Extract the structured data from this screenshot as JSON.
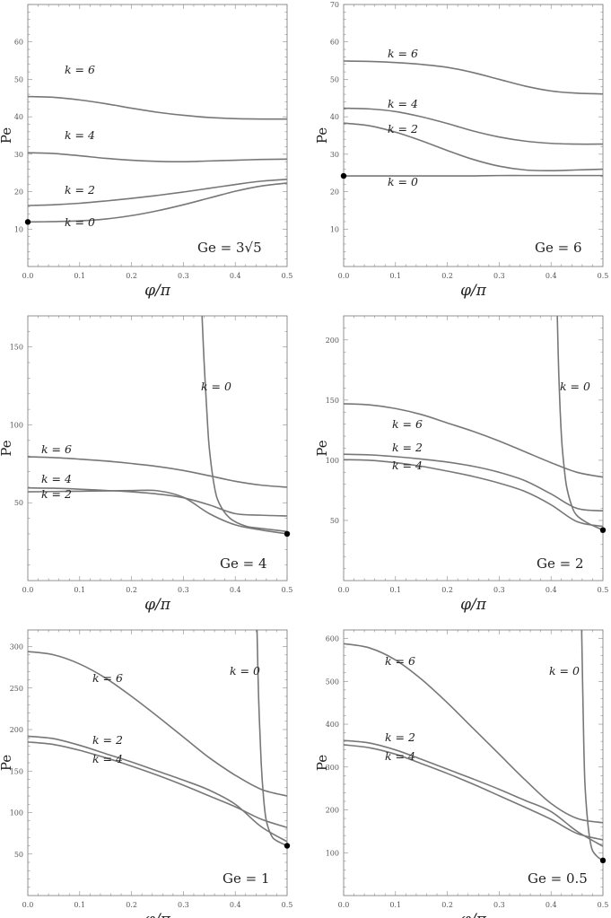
{
  "chart_data": [
    {
      "type": "line",
      "panel_label": "Ge = 3√5",
      "xlabel": "φ/π",
      "ylabel": "Pe",
      "xlim": [
        0,
        0.5
      ],
      "ylim": [
        0,
        70
      ],
      "xticks": [
        "0.0",
        "0.1",
        "0.2",
        "0.3",
        "0.4",
        "0.5"
      ],
      "yticks": [
        "10",
        "20",
        "30",
        "40",
        "50",
        "60"
      ],
      "x": [
        0,
        0.05,
        0.1,
        0.15,
        0.2,
        0.25,
        0.3,
        0.35,
        0.4,
        0.45,
        0.5
      ],
      "series": [
        {
          "name": "k = 6",
          "values": [
            45.4,
            45.2,
            44.5,
            43.5,
            42.3,
            41.2,
            40.4,
            39.8,
            39.5,
            39.4,
            39.4
          ]
        },
        {
          "name": "k = 4",
          "values": [
            30.4,
            30.2,
            29.6,
            28.9,
            28.4,
            28.1,
            28.0,
            28.2,
            28.4,
            28.6,
            28.7
          ]
        },
        {
          "name": "k = 2",
          "values": [
            16.3,
            16.5,
            16.9,
            17.5,
            18.2,
            19.0,
            19.9,
            20.9,
            21.9,
            22.8,
            23.3
          ]
        },
        {
          "name": "k = 0",
          "values": [
            11.9,
            12.0,
            12.2,
            12.7,
            13.6,
            14.9,
            16.5,
            18.3,
            20.1,
            21.5,
            22.3
          ]
        }
      ],
      "marker": {
        "x": 0,
        "y": 11.9
      }
    },
    {
      "type": "line",
      "panel_label": "Ge = 6",
      "xlabel": "φ/π",
      "ylabel": "Pe",
      "xlim": [
        0,
        0.5
      ],
      "ylim": [
        0,
        70
      ],
      "xticks": [
        "0.0",
        "0.1",
        "0.2",
        "0.3",
        "0.4",
        "0.5"
      ],
      "yticks": [
        "10",
        "20",
        "30",
        "40",
        "50",
        "60",
        "70"
      ],
      "x": [
        0,
        0.05,
        0.1,
        0.15,
        0.2,
        0.25,
        0.3,
        0.35,
        0.4,
        0.45,
        0.5
      ],
      "series": [
        {
          "name": "k = 6",
          "values": [
            54.9,
            54.8,
            54.5,
            54.0,
            53.2,
            51.8,
            50.0,
            48.2,
            46.9,
            46.3,
            46.1
          ]
        },
        {
          "name": "k = 4",
          "values": [
            42.3,
            42.1,
            41.4,
            40.0,
            38.2,
            36.2,
            34.6,
            33.5,
            32.9,
            32.7,
            32.7
          ]
        },
        {
          "name": "k = 2",
          "values": [
            38.3,
            37.6,
            35.9,
            33.6,
            31.0,
            28.6,
            26.8,
            25.8,
            25.6,
            25.8,
            26.0
          ]
        },
        {
          "name": "k = 0",
          "values": [
            24.2,
            24.2,
            24.2,
            24.2,
            24.2,
            24.2,
            24.3,
            24.3,
            24.3,
            24.3,
            24.3
          ]
        }
      ],
      "marker": {
        "x": 0,
        "y": 24.2
      }
    },
    {
      "type": "line",
      "panel_label": "Ge = 4",
      "xlabel": "φ/π",
      "ylabel": "Pe",
      "xlim": [
        0,
        0.5
      ],
      "ylim": [
        0,
        170
      ],
      "xticks": [
        "0.0",
        "0.1",
        "0.2",
        "0.3",
        "0.4",
        "0.5"
      ],
      "yticks": [
        "50",
        "100",
        "150"
      ],
      "x": [
        0,
        0.05,
        0.1,
        0.15,
        0.2,
        0.25,
        0.3,
        0.35,
        0.4,
        0.45,
        0.5
      ],
      "series": [
        {
          "name": "k = 6",
          "values": [
            79.5,
            79.0,
            78.0,
            76.8,
            75.2,
            73.3,
            70.7,
            67.3,
            63.8,
            61.3,
            60.0
          ]
        },
        {
          "name": "k = 4",
          "values": [
            59.5,
            59.3,
            58.7,
            57.9,
            57.0,
            55.6,
            53.2,
            48.6,
            43.0,
            42.0,
            41.5
          ]
        },
        {
          "name": "k = 2",
          "values": [
            57.0,
            57.2,
            57.4,
            57.6,
            57.8,
            57.7,
            53.5,
            43.0,
            35.8,
            32.5,
            30.0
          ]
        }
      ],
      "asymptote_series": {
        "name": "k = 0",
        "x": [
          0.336,
          0.34,
          0.345,
          0.35,
          0.36,
          0.37,
          0.39,
          0.42,
          0.45,
          0.5
        ],
        "values": [
          170,
          140,
          110,
          85,
          60,
          49,
          40,
          35,
          33.5,
          31.5
        ]
      },
      "marker": {
        "x": 0.5,
        "y": 30
      }
    },
    {
      "type": "line",
      "panel_label": "Ge = 2",
      "xlabel": "φ/π",
      "ylabel": "Pe",
      "xlim": [
        0,
        0.5
      ],
      "ylim": [
        0,
        220
      ],
      "xticks": [
        "0.0",
        "0.1",
        "0.2",
        "0.3",
        "0.4",
        "0.5"
      ],
      "yticks": [
        "50",
        "100",
        "150",
        "200"
      ],
      "x": [
        0,
        0.05,
        0.1,
        0.15,
        0.2,
        0.25,
        0.3,
        0.35,
        0.4,
        0.45,
        0.5
      ],
      "series": [
        {
          "name": "k = 6",
          "values": [
            147,
            146,
            143,
            138,
            131,
            124,
            116,
            107,
            98,
            90,
            86
          ]
        },
        {
          "name": "k = 2",
          "values": [
            105,
            104.5,
            103,
            101,
            98.5,
            95,
            90,
            83,
            72,
            60,
            58
          ]
        },
        {
          "name": "k = 4",
          "values": [
            100.5,
            100,
            98,
            95,
            91,
            86.5,
            81,
            74,
            63,
            49,
            45
          ]
        }
      ],
      "asymptote_series": {
        "name": "k = 0",
        "x": [
          0.412,
          0.415,
          0.42,
          0.425,
          0.43,
          0.44,
          0.45,
          0.47,
          0.5
        ],
        "values": [
          220,
          170,
          120,
          95,
          78,
          62,
          54,
          48,
          42
        ]
      },
      "marker": {
        "x": 0.5,
        "y": 42
      }
    },
    {
      "type": "line",
      "panel_label": "Ge = 1",
      "xlabel": "φ/π",
      "ylabel": "Pe",
      "xlim": [
        0,
        0.5
      ],
      "ylim": [
        0,
        320
      ],
      "xticks": [
        "0.0",
        "0.1",
        "0.2",
        "0.3",
        "0.4",
        "0.5"
      ],
      "yticks": [
        "50",
        "100",
        "150",
        "200",
        "250",
        "300"
      ],
      "x": [
        0,
        0.05,
        0.1,
        0.15,
        0.2,
        0.25,
        0.3,
        0.35,
        0.4,
        0.45,
        0.5
      ],
      "series": [
        {
          "name": "k = 6",
          "values": [
            294,
            290,
            279,
            262,
            240,
            216,
            191,
            166,
            145,
            128,
            120
          ]
        },
        {
          "name": "k = 2",
          "values": [
            192,
            189,
            181,
            171,
            161,
            150,
            139,
            127,
            110,
            83,
            65
          ]
        },
        {
          "name": "k = 4",
          "values": [
            185,
            182,
            175,
            166,
            156,
            145,
            133,
            120,
            107,
            92,
            82
          ]
        }
      ],
      "asymptote_series": {
        "name": "k = 0",
        "x": [
          0.442,
          0.445,
          0.45,
          0.455,
          0.46,
          0.47,
          0.48,
          0.5
        ],
        "values": [
          320,
          240,
          160,
          115,
          90,
          72,
          66,
          60
        ]
      },
      "marker": {
        "x": 0.5,
        "y": 60
      }
    },
    {
      "type": "line",
      "panel_label": "Ge = 0.5",
      "xlabel": "φ/π",
      "ylabel": "Pe",
      "xlim": [
        0,
        0.5
      ],
      "ylim": [
        0,
        620
      ],
      "xticks": [
        "0.0",
        "0.1",
        "0.2",
        "0.3",
        "0.4",
        "0.5"
      ],
      "yticks": [
        "100",
        "200",
        "300",
        "400",
        "500",
        "600"
      ],
      "x": [
        0,
        0.05,
        0.1,
        0.15,
        0.2,
        0.25,
        0.3,
        0.35,
        0.4,
        0.45,
        0.5
      ],
      "series": [
        {
          "name": "k = 6",
          "values": [
            588,
            578,
            550,
            505,
            450,
            390,
            330,
            270,
            215,
            180,
            170
          ]
        },
        {
          "name": "k = 2",
          "values": [
            362,
            356,
            340,
            318,
            295,
            272,
            248,
            222,
            196,
            150,
            115
          ]
        },
        {
          "name": "k = 4",
          "values": [
            352,
            345,
            330,
            308,
            285,
            260,
            233,
            206,
            178,
            145,
            130
          ]
        }
      ],
      "asymptote_series": {
        "name": "k = 0",
        "x": [
          0.459,
          0.462,
          0.465,
          0.47,
          0.475,
          0.48,
          0.49,
          0.5
        ],
        "values": [
          620,
          420,
          270,
          180,
          130,
          105,
          90,
          82
        ]
      },
      "marker": {
        "x": 0.5,
        "y": 82
      }
    }
  ]
}
